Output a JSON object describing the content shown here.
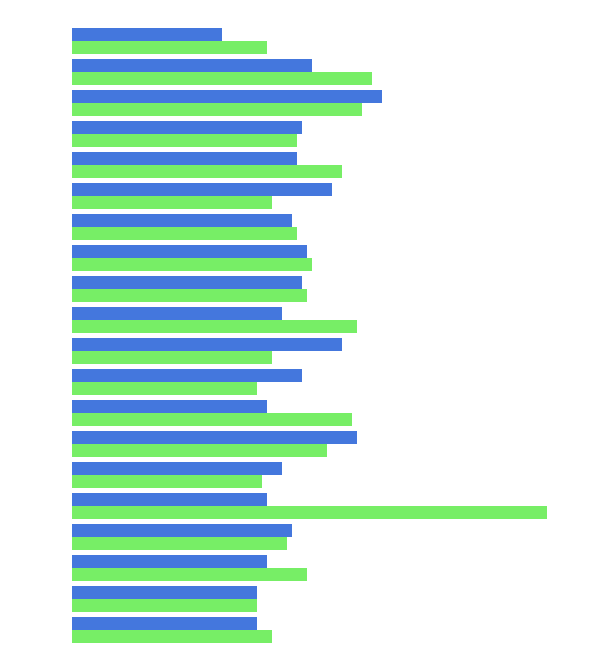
{
  "chart_data": {
    "type": "bar",
    "orientation": "horizontal",
    "categories": [
      null,
      null,
      null,
      null,
      null,
      null,
      null,
      null,
      null,
      null,
      null,
      null,
      null,
      null,
      null,
      null,
      null,
      null,
      null,
      null
    ],
    "series": [
      {
        "color": "#4477dd",
        "values": [
          150,
          240,
          310,
          230,
          225,
          260,
          220,
          235,
          230,
          210,
          270,
          230,
          195,
          285,
          210,
          195,
          220,
          195,
          185,
          185
        ]
      },
      {
        "color": "#77ee66",
        "values": [
          195,
          300,
          290,
          225,
          270,
          200,
          225,
          240,
          235,
          285,
          200,
          185,
          280,
          255,
          190,
          475,
          215,
          235,
          185,
          200
        ]
      }
    ],
    "xlim": [
      0,
      510
    ],
    "tick_labels": false
  }
}
